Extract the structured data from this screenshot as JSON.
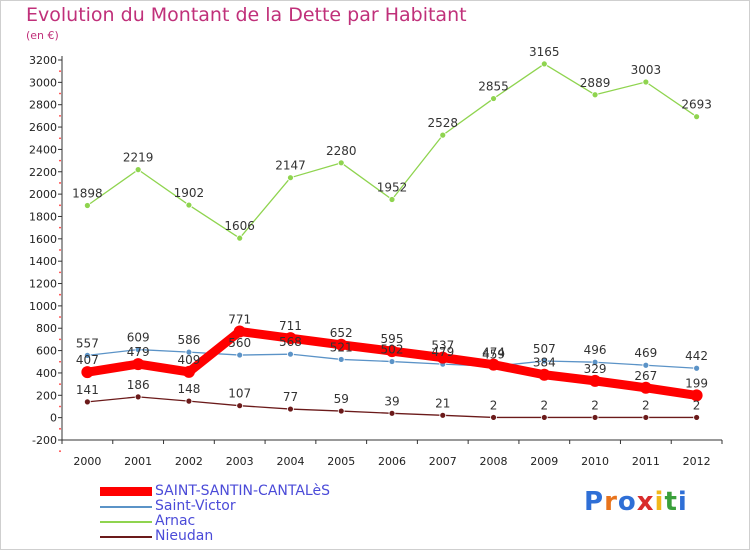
{
  "header": {
    "title": "Evolution du Montant de la Dette par Habitant",
    "subtitle": "(en €)"
  },
  "brand": {
    "letters": [
      "P",
      "r",
      "o",
      "x",
      "i",
      "t",
      "i"
    ],
    "colors": [
      "#2f6fd6",
      "#e8731c",
      "#2f6fd6",
      "#d92c2c",
      "#f2b81a",
      "#3aa03a",
      "#2f6fd6"
    ]
  },
  "chart_data": {
    "type": "line",
    "x": [
      "2000",
      "2001",
      "2002",
      "2003",
      "2004",
      "2005",
      "2006",
      "2007",
      "2008",
      "2009",
      "2010",
      "2011",
      "2012"
    ],
    "ylim": [
      -200,
      3200
    ],
    "yticks": [
      -200,
      0,
      200,
      400,
      600,
      800,
      1000,
      1200,
      1400,
      1600,
      1800,
      2000,
      2200,
      2400,
      2600,
      2800,
      3000,
      3200
    ],
    "grid": false,
    "legend": "bottom-left",
    "series": [
      {
        "name": "SAINT-SANTIN-CANTALèS",
        "color": "#ff0000",
        "values": [
          407,
          479,
          409,
          771,
          711,
          652,
          595,
          537,
          474,
          384,
          329,
          267,
          199
        ]
      },
      {
        "name": "Saint-Victor",
        "color": "#5b93c7",
        "values": [
          557,
          609,
          586,
          560,
          568,
          521,
          502,
          479,
          459,
          507,
          496,
          469,
          442
        ]
      },
      {
        "name": "Arnac",
        "color": "#8fd44f",
        "values": [
          1898,
          2219,
          1902,
          1606,
          2147,
          2280,
          1952,
          2528,
          2855,
          3165,
          2889,
          3003,
          2693
        ]
      },
      {
        "name": "Nieudan",
        "color": "#6b1a1a",
        "values": [
          141,
          186,
          148,
          107,
          77,
          59,
          39,
          21,
          2,
          2,
          2,
          2,
          2
        ]
      }
    ]
  }
}
